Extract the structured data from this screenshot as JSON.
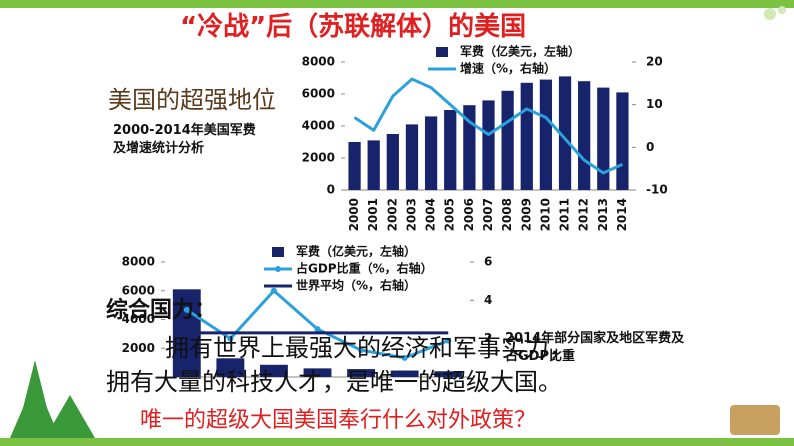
{
  "slide": {
    "title": "“冷战”后（苏联解体）的美国",
    "heading": "美国的超强地位",
    "caption": "2000-2014年美国军费及增速统计分析",
    "overall_label": "综合国力：",
    "body": [
      "拥有世界上最强大的经济和军事实力，",
      "拥有大量的科技人才，是唯一的超级大国。"
    ],
    "question": "唯一的超级大国美国奉行什么对外政策？",
    "chart2_caption": "2014年部分国家及地区军费及占GDP比重"
  },
  "chart_data": [
    {
      "type": "bar-line",
      "categories": [
        "2000",
        "2001",
        "2002",
        "2003",
        "2004",
        "2005",
        "2006",
        "2007",
        "2008",
        "2009",
        "2010",
        "2011",
        "2012",
        "2013",
        "2014"
      ],
      "series": [
        {
          "name": "军费（亿美元，左轴）",
          "type": "bar",
          "color": "#17236b",
          "values": [
            3000,
            3100,
            3500,
            4100,
            4600,
            5000,
            5300,
            5600,
            6200,
            6700,
            6900,
            7100,
            6800,
            6400,
            6100
          ]
        },
        {
          "name": "增速（%，右轴）",
          "type": "line",
          "axis": "y2",
          "color": "#2aa0dc",
          "values": [
            7,
            4,
            12,
            16,
            14,
            10,
            6,
            3,
            6,
            9,
            7,
            2,
            -3,
            -6,
            -4
          ]
        }
      ],
      "ylim": [
        0,
        8000
      ],
      "yticks": [
        0,
        2000,
        4000,
        6000,
        8000
      ],
      "y2lim": [
        -10,
        20
      ],
      "y2ticks": [
        -10,
        0,
        10,
        20
      ]
    },
    {
      "type": "bar-line",
      "categories": [
        null,
        null,
        null,
        null,
        null,
        null,
        null
      ],
      "series": [
        {
          "name": "军费（亿美元，左轴）",
          "type": "bar",
          "color": "#17236b",
          "values": [
            6100,
            1300,
            850,
            600,
            550,
            450,
            400
          ]
        },
        {
          "name": "占GDP比重（%，右轴）",
          "type": "line",
          "axis": "y2",
          "color": "#2aa0dc",
          "marker": true,
          "values": [
            3.5,
            2.0,
            4.5,
            2.5,
            1.4,
            1.0,
            1.9
          ]
        },
        {
          "name": "世界平均（%，右轴）",
          "type": "line",
          "axis": "y2",
          "color": "#17236b",
          "values": [
            2.3,
            2.3,
            2.3,
            2.3,
            2.3,
            2.3,
            2.3
          ]
        }
      ],
      "ylim": [
        0,
        8000
      ],
      "yticks": [
        2000,
        4000,
        6000,
        8000
      ],
      "y2lim": [
        0,
        6
      ],
      "y2ticks": [
        2,
        4,
        6
      ]
    }
  ]
}
